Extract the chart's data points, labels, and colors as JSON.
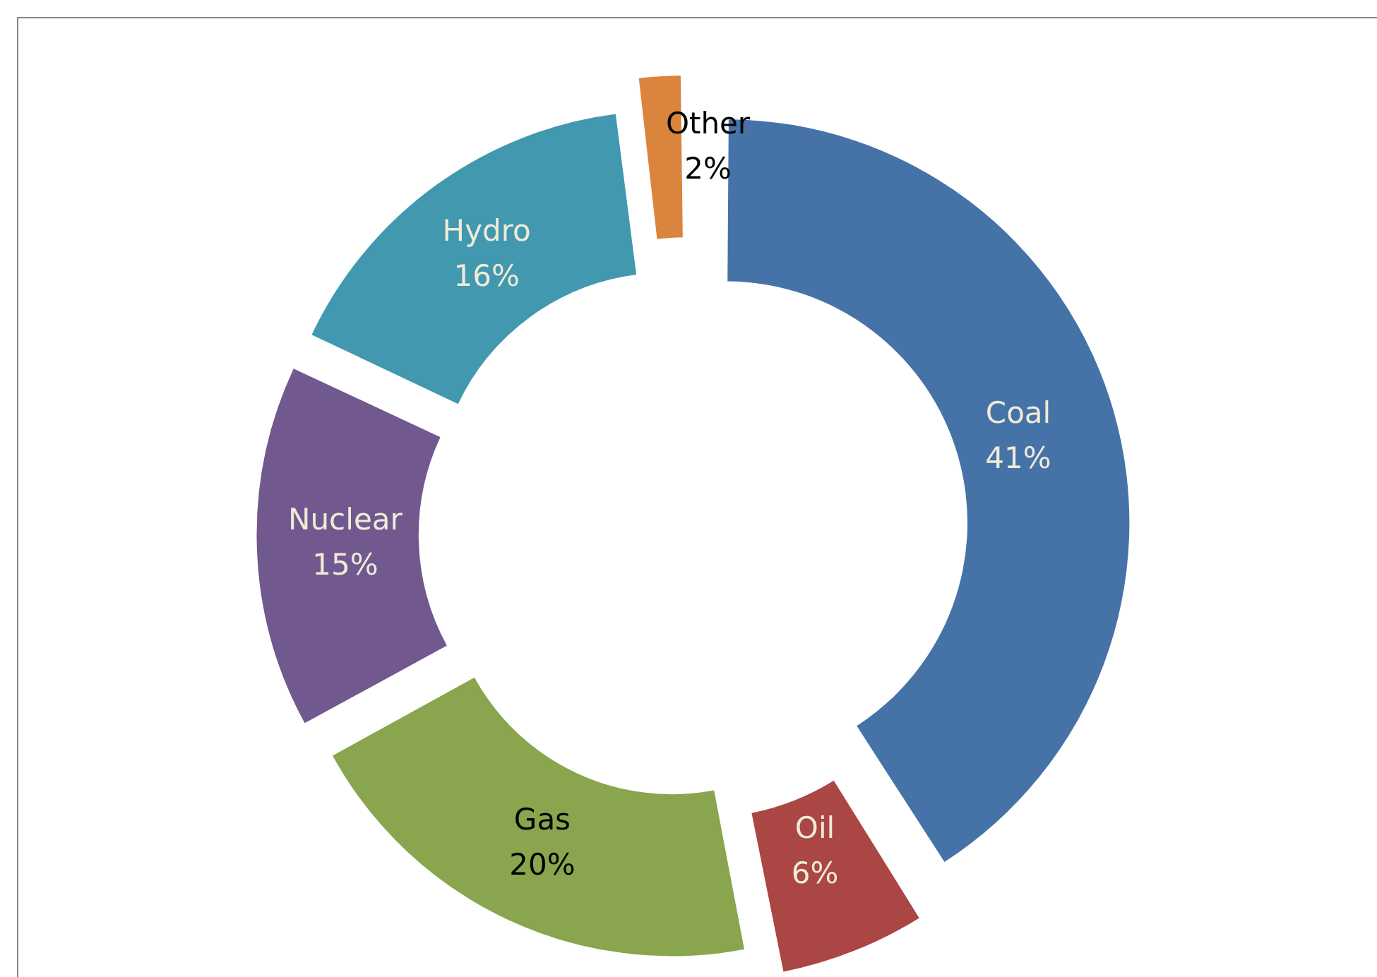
{
  "chart_data": {
    "type": "donut",
    "categories": [
      "Coal",
      "Oil",
      "Gas",
      "Nuclear",
      "Hydro",
      "Other"
    ],
    "values": [
      41,
      6,
      20,
      15,
      16,
      2
    ],
    "value_labels": [
      "41%",
      "6%",
      "20%",
      "15%",
      "16%",
      "2%"
    ],
    "colors": [
      "#4573a7",
      "#aa4643",
      "#89a54e",
      "#71588f",
      "#4198af",
      "#db843d"
    ],
    "legend": false
  }
}
